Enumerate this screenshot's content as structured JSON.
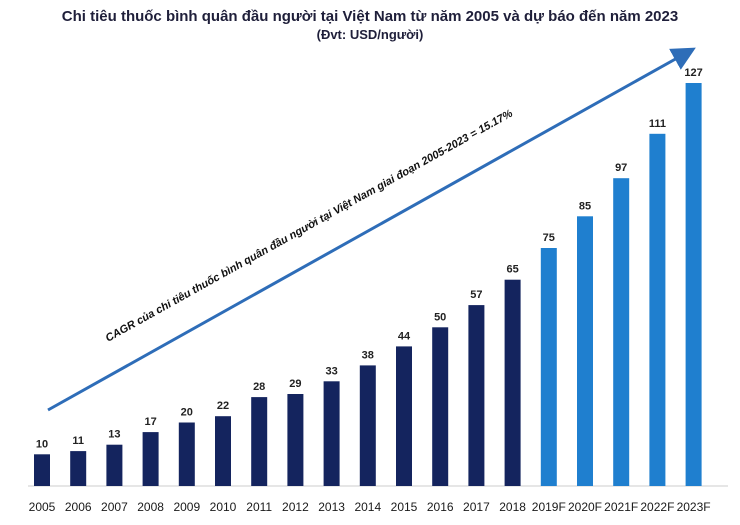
{
  "chart_data": {
    "type": "bar",
    "title": "Chi tiêu thuốc bình quân đầu người tại Việt Nam từ năm 2005 và dự báo đến năm 2023",
    "subtitle": "(Đvt: USD/người)",
    "categories": [
      "2005",
      "2006",
      "2007",
      "2008",
      "2009",
      "2010",
      "2011",
      "2012",
      "2013",
      "2014",
      "2015",
      "2016",
      "2017",
      "2018",
      "2019F",
      "2020F",
      "2021F",
      "2022F",
      "2023F"
    ],
    "values": [
      10,
      11,
      13,
      17,
      20,
      22,
      28,
      29,
      33,
      38,
      44,
      50,
      57,
      65,
      75,
      85,
      97,
      111,
      127
    ],
    "forecast_from_index": 14,
    "ylim": [
      0,
      127
    ],
    "xlabel": "",
    "ylabel": "",
    "annotation": "CAGR  của chi tiêu thuốc bình quân đầu người tại Việt Nam giai đoạn 2005-2023 = 15.17%",
    "colors": {
      "actual": "#14245e",
      "forecast": "#1f7fcf",
      "arrow": "#2e6db8"
    }
  }
}
